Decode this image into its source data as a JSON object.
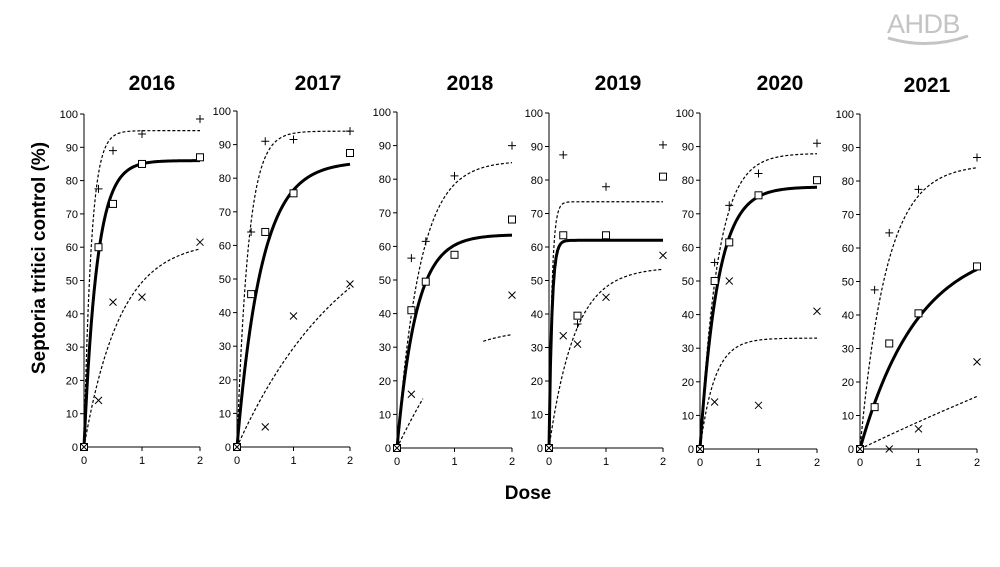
{
  "brand": {
    "logo_text": "AHDB",
    "logo_color": "#c4c4c4"
  },
  "chart_data": {
    "type": "scatter",
    "ylabel": "Septoria tritici control (%)",
    "xlabel": "Dose",
    "xlim": [
      0,
      2
    ],
    "ylim": [
      0,
      100
    ],
    "xticks": [
      0,
      1,
      2
    ],
    "yticks": [
      0,
      10,
      20,
      30,
      40,
      50,
      60,
      70,
      80,
      90,
      100
    ],
    "marker_legend": {
      "plus": "+",
      "square": "□",
      "cross": "×"
    },
    "panels": [
      {
        "title": "2016",
        "points": [
          {
            "marker": "plus",
            "pts": [
              [
                0,
                0
              ],
              [
                0.25,
                77.5
              ],
              [
                0.5,
                89
              ],
              [
                1,
                94
              ],
              [
                2,
                98.5
              ]
            ]
          },
          {
            "marker": "square",
            "pts": [
              [
                0,
                0
              ],
              [
                0.25,
                60
              ],
              [
                0.5,
                73
              ],
              [
                1,
                85
              ],
              [
                2,
                87
              ]
            ]
          },
          {
            "marker": "cross",
            "pts": [
              [
                0,
                0
              ],
              [
                0.25,
                14
              ],
              [
                0.5,
                43.5
              ],
              [
                1,
                45
              ],
              [
                2,
                61.5
              ]
            ]
          }
        ],
        "curves": [
          {
            "style": "dashed",
            "asymptote": 95,
            "rate": 8
          },
          {
            "style": "solid",
            "asymptote": 86,
            "rate": 4.5
          },
          {
            "style": "dashed",
            "asymptote": 62,
            "rate": 1.6
          }
        ]
      },
      {
        "title": "2017",
        "points": [
          {
            "marker": "plus",
            "pts": [
              [
                0,
                0
              ],
              [
                0.25,
                64
              ],
              [
                0.5,
                91
              ],
              [
                1,
                91.5
              ],
              [
                2,
                94
              ]
            ]
          },
          {
            "marker": "square",
            "pts": [
              [
                0,
                0
              ],
              [
                0.25,
                45.5
              ],
              [
                0.5,
                64
              ],
              [
                1,
                75.5
              ],
              [
                2,
                87.5
              ]
            ]
          },
          {
            "marker": "cross",
            "pts": [
              [
                0,
                0
              ],
              [
                0.5,
                6
              ],
              [
                1,
                39
              ],
              [
                2,
                48.5
              ]
            ]
          }
        ],
        "curves": [
          {
            "style": "dashed",
            "asymptote": 94,
            "rate": 5
          },
          {
            "style": "solid",
            "asymptote": 85,
            "rate": 2.3
          },
          {
            "style": "dashed",
            "asymptote": 75,
            "rate": 0.5
          }
        ]
      },
      {
        "title": "2018",
        "points": [
          {
            "marker": "plus",
            "pts": [
              [
                0,
                0
              ],
              [
                0.25,
                56.5
              ],
              [
                0.5,
                61.5
              ],
              [
                1,
                81
              ],
              [
                2,
                90
              ]
            ]
          },
          {
            "marker": "square",
            "pts": [
              [
                0,
                0
              ],
              [
                0.25,
                41
              ],
              [
                0.5,
                49.5
              ],
              [
                1,
                57.5
              ],
              [
                2,
                68
              ]
            ]
          },
          {
            "marker": "cross",
            "pts": [
              [
                0,
                0
              ],
              [
                0.25,
                16
              ],
              [
                2,
                45.5
              ]
            ]
          }
        ],
        "curves": [
          {
            "style": "dashed",
            "asymptote": 85.5,
            "rate": 2.5
          },
          {
            "style": "solid",
            "asymptote": 63.5,
            "rate": 3
          },
          {
            "style": "dashed",
            "asymptote": 80,
            "rate": 0.45,
            "from": 0,
            "to": 0.45
          },
          {
            "style": "dashed",
            "asymptote": 35.5,
            "rate": 1.5,
            "from": 1.5,
            "to": 2
          }
        ]
      },
      {
        "title": "2019",
        "points": [
          {
            "marker": "plus",
            "pts": [
              [
                0,
                0
              ],
              [
                0.25,
                87.5
              ],
              [
                0.5,
                37
              ],
              [
                1,
                78
              ],
              [
                2,
                90.5
              ]
            ]
          },
          {
            "marker": "square",
            "pts": [
              [
                0,
                0
              ],
              [
                0.25,
                63.5
              ],
              [
                0.5,
                39.5
              ],
              [
                1,
                63.5
              ],
              [
                2,
                81
              ]
            ]
          },
          {
            "marker": "cross",
            "pts": [
              [
                0,
                0
              ],
              [
                0.25,
                33.5
              ],
              [
                0.5,
                31
              ],
              [
                1,
                45
              ],
              [
                2,
                57.5
              ]
            ]
          }
        ],
        "curves": [
          {
            "style": "dashed",
            "asymptote": 73.5,
            "rate": 20
          },
          {
            "style": "solid",
            "asymptote": 62,
            "rate": 20
          },
          {
            "style": "dashed",
            "asymptote": 54,
            "rate": 2.2
          }
        ]
      },
      {
        "title": "2020",
        "points": [
          {
            "marker": "plus",
            "pts": [
              [
                0,
                0
              ],
              [
                0.25,
                55.5
              ],
              [
                0.5,
                72.5
              ],
              [
                1,
                82
              ],
              [
                2,
                91
              ]
            ]
          },
          {
            "marker": "square",
            "pts": [
              [
                0,
                0
              ],
              [
                0.25,
                50
              ],
              [
                0.5,
                61.5
              ],
              [
                1,
                75.5
              ],
              [
                2,
                80
              ]
            ]
          },
          {
            "marker": "cross",
            "pts": [
              [
                0,
                0
              ],
              [
                0.25,
                14
              ],
              [
                0.5,
                50
              ],
              [
                1,
                13
              ],
              [
                2,
                41
              ]
            ]
          }
        ],
        "curves": [
          {
            "style": "dashed",
            "asymptote": 88,
            "rate": 3.3
          },
          {
            "style": "solid",
            "asymptote": 78,
            "rate": 3.3
          },
          {
            "style": "dashed",
            "asymptote": 33,
            "rate": 4
          }
        ]
      },
      {
        "title": "2021",
        "points": [
          {
            "marker": "plus",
            "pts": [
              [
                0,
                0
              ],
              [
                0.25,
                47.5
              ],
              [
                0.5,
                64.5
              ],
              [
                1,
                77.5
              ],
              [
                2,
                87
              ]
            ]
          },
          {
            "marker": "square",
            "pts": [
              [
                0,
                0
              ],
              [
                0.25,
                12.5
              ],
              [
                0.5,
                31.5
              ],
              [
                1,
                40.5
              ],
              [
                2,
                54.5
              ]
            ]
          },
          {
            "marker": "cross",
            "pts": [
              [
                0,
                0
              ],
              [
                0.5,
                0
              ],
              [
                1,
                6
              ],
              [
                2,
                26
              ]
            ]
          }
        ],
        "curves": [
          {
            "style": "dashed",
            "asymptote": 85,
            "rate": 2.2
          },
          {
            "style": "solid",
            "asymptote": 62,
            "rate": 1
          },
          {
            "style": "dashed",
            "asymptote": 120,
            "rate": 0.07
          }
        ]
      }
    ]
  }
}
